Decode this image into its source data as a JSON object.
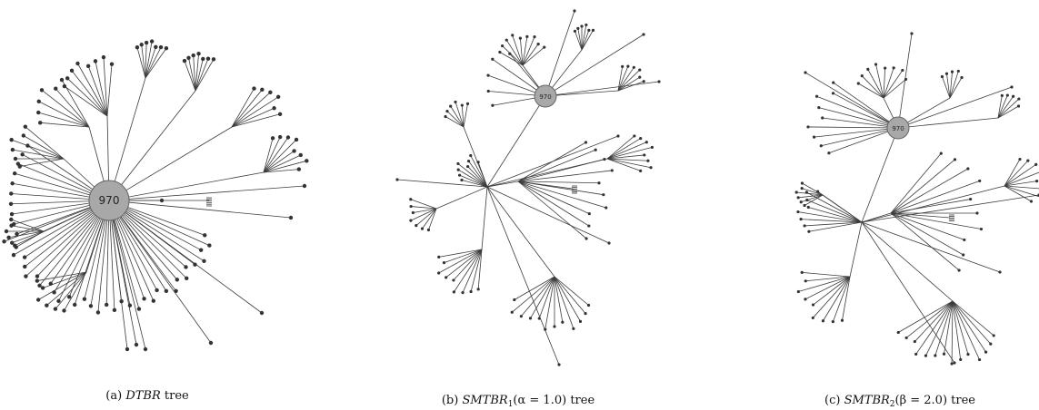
{
  "figure": {
    "panels": [
      {
        "id": "a",
        "hub_label": "970",
        "caption": {
          "prefix": "(a) ",
          "name": "DTBR",
          "suffix": " tree"
        }
      },
      {
        "id": "b",
        "hub_label": "970",
        "caption": {
          "prefix": "(b) ",
          "name": "SMTBR",
          "subscript": "1",
          "param": "(α = 1.0)",
          "suffix": " tree"
        }
      },
      {
        "id": "c",
        "hub_label": "970",
        "caption": {
          "prefix": "(c) ",
          "name": "SMTBR",
          "subscript": "2",
          "param": "(β = 2.0)",
          "suffix": " tree"
        }
      }
    ],
    "colors": {
      "edge": "#3c3c3c",
      "leaf": "#333333",
      "hub_fill": "#a8a8a8",
      "hub_stroke": "#666666"
    }
  }
}
